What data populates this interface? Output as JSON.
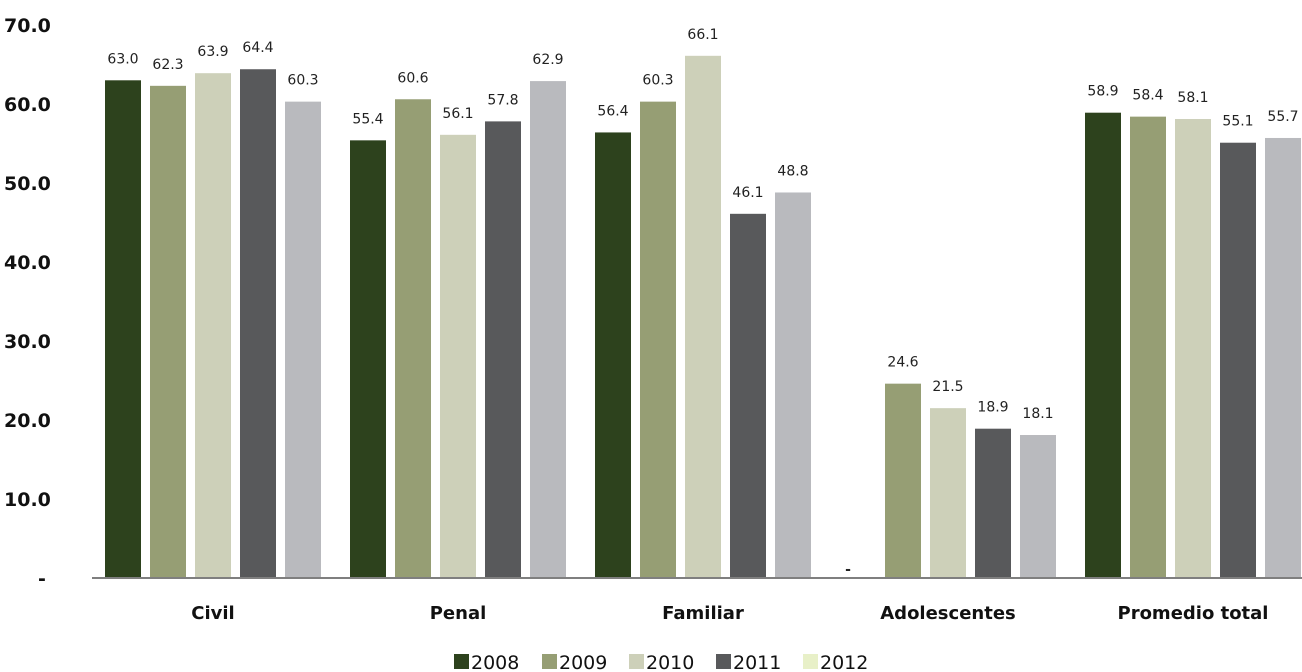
{
  "chart_data": {
    "type": "bar",
    "categories": [
      "Civil",
      "Penal",
      "Familiar",
      "Adolescentes",
      "Promedio total"
    ],
    "series": [
      {
        "name": "2008",
        "color": "#2d421d",
        "values": [
          63.0,
          55.4,
          56.4,
          null,
          58.9
        ],
        "labels": [
          "63.0",
          "55.4",
          "56.4",
          "-",
          "58.9"
        ]
      },
      {
        "name": "2009",
        "color": "#969e74",
        "values": [
          62.3,
          60.6,
          60.3,
          24.6,
          58.4
        ],
        "labels": [
          "62.3",
          "60.6",
          "60.3",
          "24.6",
          "58.4"
        ]
      },
      {
        "name": "2010",
        "color": "#cdd0b9",
        "values": [
          63.9,
          56.1,
          66.1,
          21.5,
          58.1
        ],
        "labels": [
          "63.9",
          "56.1",
          "66.1",
          "21.5",
          "58.1"
        ]
      },
      {
        "name": "2011",
        "color": "#58595b",
        "values": [
          64.4,
          57.8,
          46.1,
          18.9,
          55.1
        ],
        "labels": [
          "64.4",
          "57.8",
          "46.1",
          "18.9",
          "55.1"
        ]
      },
      {
        "name": "2012",
        "color": "#b9babe",
        "legend_color": "#e8f0c8",
        "values": [
          60.3,
          62.9,
          48.8,
          18.1,
          55.7
        ],
        "labels": [
          "60.3",
          "62.9",
          "48.8",
          "18.1",
          "55.7"
        ]
      }
    ],
    "ylim": [
      0,
      70
    ],
    "yticks": [
      0,
      10,
      20,
      30,
      40,
      50,
      60,
      70
    ],
    "ytick_labels": [
      "-",
      "10.0",
      "20.0",
      "30.0",
      "40.0",
      "50.0",
      "60.0",
      "70.0"
    ],
    "grid": false,
    "legend_position": "bottom",
    "title": "",
    "xlabel": "",
    "ylabel": ""
  }
}
